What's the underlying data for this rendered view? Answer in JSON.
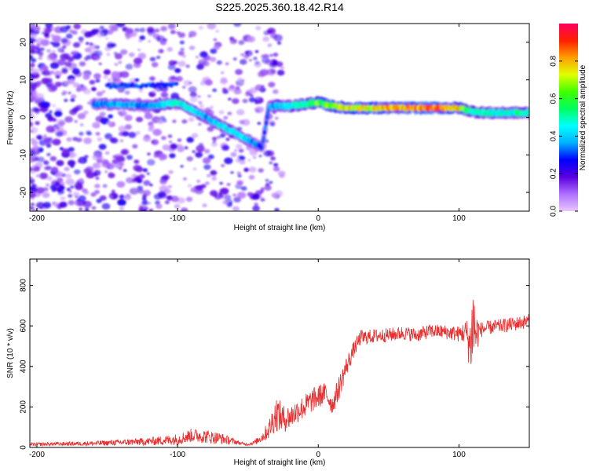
{
  "title": "S225.2025.360.18.42.R14",
  "chart_data": [
    {
      "type": "heatmap",
      "name": "spectrogram",
      "xlabel": "Height of straight line (km)",
      "ylabel": "Frequency (Hz)",
      "xlim": [
        -205,
        150
      ],
      "ylim": [
        -25,
        25
      ],
      "xticks": [
        -200,
        -100,
        0,
        100
      ],
      "yticks": [
        -20,
        -10,
        0,
        10,
        20
      ],
      "colorbar": {
        "label": "Normalized spectral amplitude",
        "range": [
          0,
          1
        ],
        "ticks": [
          "0.0",
          "0.2",
          "0.4",
          "0.6",
          "0.8"
        ],
        "colors": [
          "#e8c8ff",
          "#b070ff",
          "#5a00e0",
          "#0000ff",
          "#00b0ff",
          "#00ffff",
          "#00ff60",
          "#40ff00",
          "#e0ff00",
          "#ffa000",
          "#ff2000",
          "#ff0060"
        ]
      },
      "ridge": {
        "x": [
          -160,
          -140,
          -120,
          -110,
          -100,
          -90,
          -80,
          -70,
          -60,
          -50,
          -40,
          -35,
          -30,
          -20,
          -10,
          0,
          10,
          20,
          40,
          60,
          80,
          100,
          105,
          110,
          120,
          150
        ],
        "f": [
          3.5,
          3.5,
          3,
          3.5,
          4,
          2,
          0,
          -2,
          -4,
          -6,
          -8,
          3,
          3,
          3,
          3.5,
          4,
          3,
          2.5,
          2.5,
          2.5,
          2.5,
          2.5,
          2,
          1.5,
          1.2,
          1.2
        ],
        "peak_amplitude": [
          0.35,
          0.4,
          0.35,
          0.45,
          0.5,
          0.45,
          0.4,
          0.45,
          0.45,
          0.4,
          0.3,
          0.35,
          0.4,
          0.5,
          0.55,
          0.65,
          0.7,
          0.75,
          0.8,
          0.85,
          0.9,
          0.8,
          0.55,
          0.55,
          0.5,
          0.5
        ]
      }
    },
    {
      "type": "line",
      "name": "snr",
      "xlabel": "Height of straight line (km)",
      "ylabel": "SNR (10 * v/v)",
      "xlim": [
        -205,
        150
      ],
      "ylim": [
        0,
        930
      ],
      "xticks": [
        -200,
        -100,
        0,
        100
      ],
      "yticks": [
        0,
        200,
        400,
        600,
        800
      ],
      "color": "#e83030",
      "series": [
        {
          "name": "SNR",
          "x": [
            -205,
            -180,
            -160,
            -140,
            -120,
            -100,
            -90,
            -80,
            -70,
            -60,
            -55,
            -50,
            -45,
            -40,
            -35,
            -30,
            -25,
            -20,
            -15,
            -10,
            -5,
            0,
            5,
            10,
            15,
            20,
            25,
            30,
            40,
            50,
            60,
            70,
            80,
            90,
            100,
            105,
            108,
            110,
            112,
            115,
            120,
            130,
            140,
            150
          ],
          "y": [
            15,
            18,
            20,
            25,
            30,
            40,
            60,
            55,
            45,
            30,
            20,
            15,
            25,
            50,
            90,
            170,
            140,
            150,
            180,
            200,
            230,
            250,
            270,
            210,
            300,
            400,
            480,
            540,
            550,
            555,
            565,
            555,
            575,
            570,
            560,
            570,
            500,
            620,
            560,
            580,
            590,
            600,
            610,
            625
          ],
          "noise": [
            8,
            10,
            12,
            15,
            20,
            28,
            35,
            35,
            30,
            15,
            8,
            6,
            12,
            25,
            50,
            90,
            70,
            60,
            60,
            60,
            60,
            60,
            50,
            50,
            60,
            50,
            40,
            40,
            35,
            35,
            35,
            35,
            35,
            35,
            40,
            60,
            150,
            230,
            120,
            40,
            35,
            35,
            35,
            35
          ]
        }
      ]
    }
  ]
}
